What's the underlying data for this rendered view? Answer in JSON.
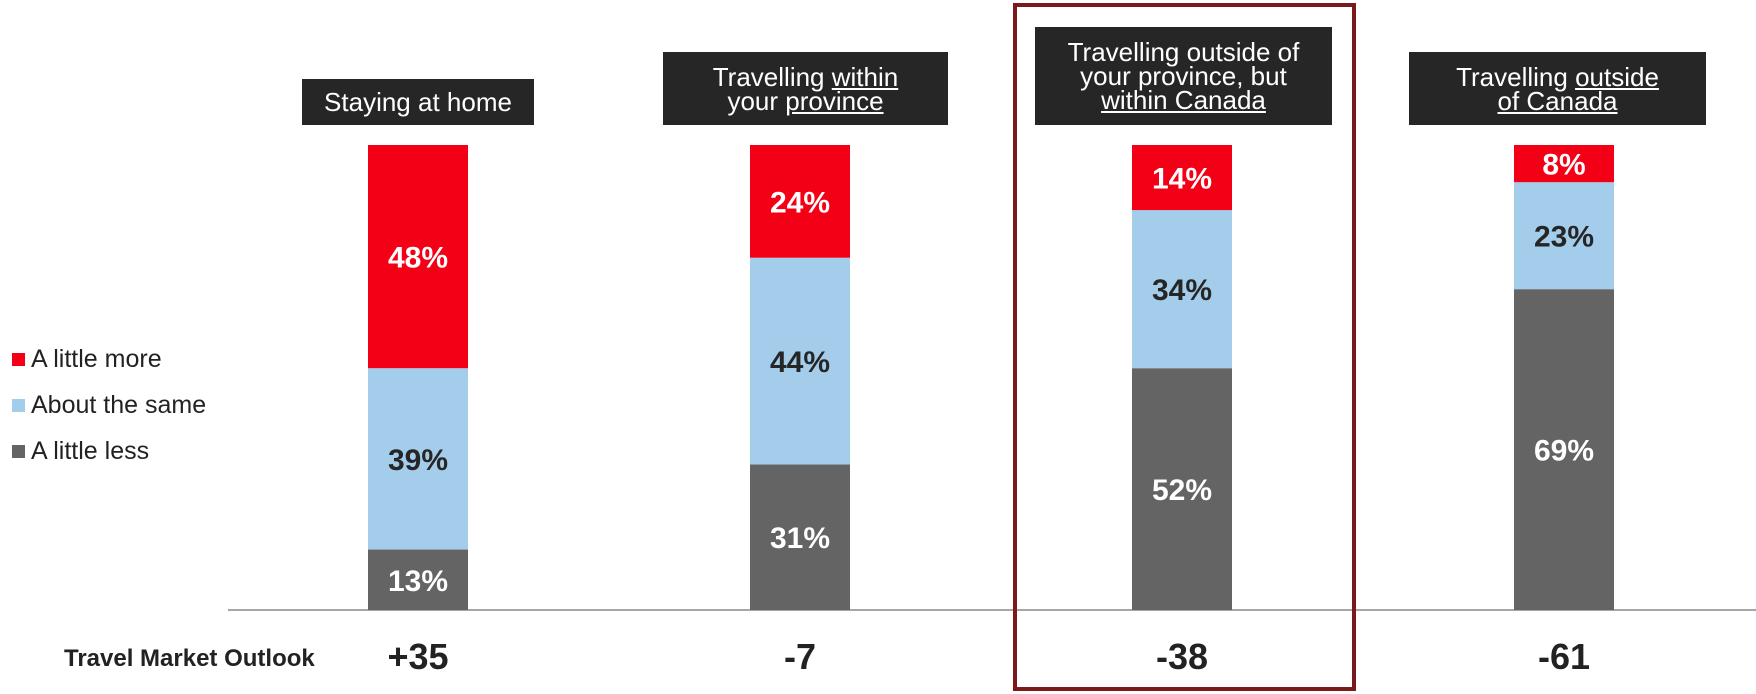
{
  "chart_data": {
    "type": "bar",
    "stacked": true,
    "categories": [
      [
        "Staying at home"
      ],
      [
        "Travelling within",
        "your province"
      ],
      [
        "Travelling outside of",
        "your province, but",
        "within Canada"
      ],
      [
        "Travelling outside",
        "of Canada"
      ]
    ],
    "series": [
      {
        "name": "A little less",
        "color": "#646464",
        "values": [
          13,
          31,
          52,
          69
        ],
        "labels": [
          "13%",
          "31%",
          "52%",
          "69%"
        ]
      },
      {
        "name": "About the same",
        "color": "#a4cdeb",
        "values": [
          39,
          44,
          34,
          23
        ],
        "labels": [
          "39%",
          "44%",
          "34%",
          "23%"
        ]
      },
      {
        "name": "A little more",
        "color": "#f40016",
        "values": [
          48,
          24,
          14,
          8
        ],
        "labels": [
          "48%",
          "24%",
          "14%",
          "8%"
        ]
      }
    ],
    "outlook_label": "Travel Market Outlook",
    "outlook_values": [
      "+35",
      "-7",
      "-38",
      "-61"
    ],
    "highlighted_category": 2,
    "legend_position": "left",
    "grid": false
  },
  "legend": {
    "items": [
      {
        "label": "A little more",
        "color": "#f40016"
      },
      {
        "label": "About the same",
        "color": "#a4cdeb"
      },
      {
        "label": "A little less",
        "color": "#646464"
      }
    ]
  }
}
